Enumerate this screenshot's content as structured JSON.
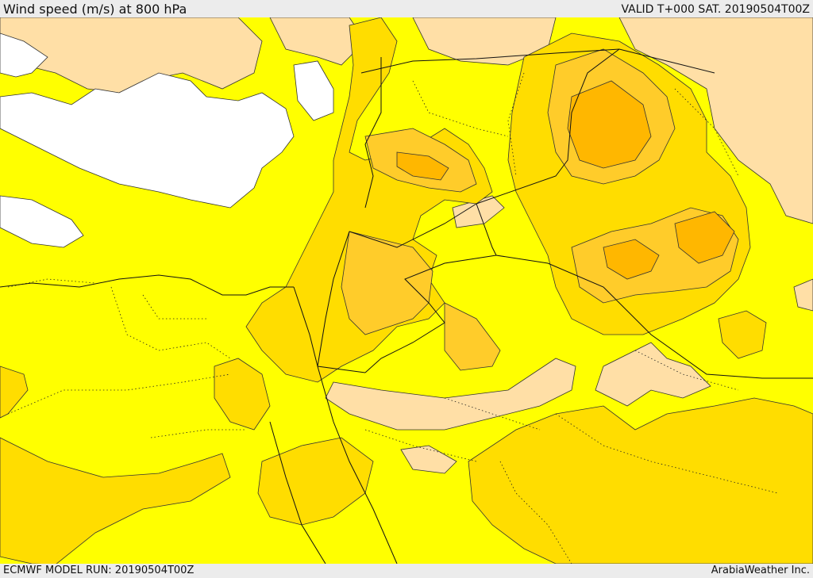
{
  "header": {
    "title": "Wind speed (m/s) at 800 hPa",
    "valid": "VALID T+000 SAT. 20190504T00Z"
  },
  "footer": {
    "model_run": "ECMWF MODEL RUN: 20190504T00Z",
    "credit": "ArabiaWeather Inc."
  },
  "map": {
    "colors": {
      "calm": "#ffffff",
      "low": "#ffdfa6",
      "base": "#ffff00",
      "moderate": "#ffdd00",
      "elevated": "#ffcc2a",
      "high": "#ffb700"
    }
  }
}
